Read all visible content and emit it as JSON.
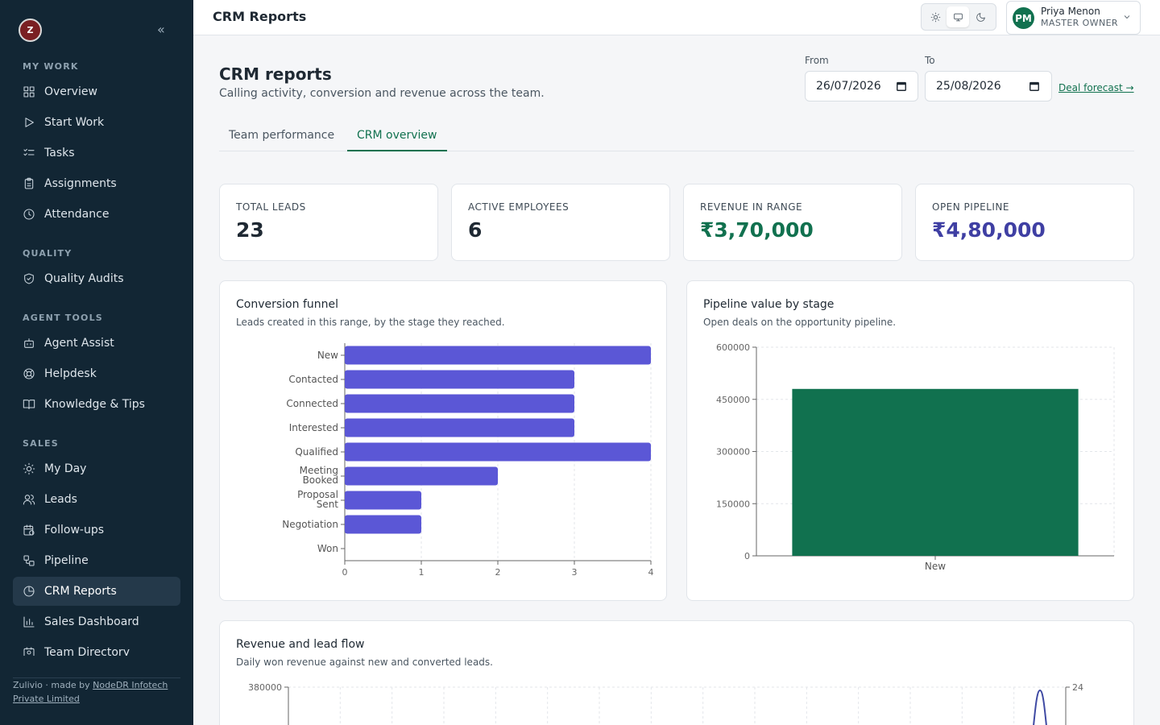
{
  "sidebar": {
    "logo_text": "Z",
    "sections": [
      {
        "title": "MY WORK",
        "items": [
          {
            "label": "Overview",
            "icon": "grid-icon"
          },
          {
            "label": "Start Work",
            "icon": "play-icon"
          },
          {
            "label": "Tasks",
            "icon": "checklist-icon"
          },
          {
            "label": "Assignments",
            "icon": "clipboard-icon"
          },
          {
            "label": "Attendance",
            "icon": "clock-icon"
          }
        ]
      },
      {
        "title": "QUALITY",
        "items": [
          {
            "label": "Quality Audits",
            "icon": "shield-icon"
          }
        ]
      },
      {
        "title": "AGENT TOOLS",
        "items": [
          {
            "label": "Agent Assist",
            "icon": "bot-icon"
          },
          {
            "label": "Helpdesk",
            "icon": "lifebuoy-icon"
          },
          {
            "label": "Knowledge & Tips",
            "icon": "book-icon"
          }
        ]
      },
      {
        "title": "SALES",
        "items": [
          {
            "label": "My Day",
            "icon": "sun-icon"
          },
          {
            "label": "Leads",
            "icon": "users-icon"
          },
          {
            "label": "Follow-ups",
            "icon": "calendar-clock-icon"
          },
          {
            "label": "Pipeline",
            "icon": "workflow-icon"
          },
          {
            "label": "CRM Reports",
            "icon": "pie-chart-icon",
            "active": true
          },
          {
            "label": "Sales Dashboard",
            "icon": "bar-chart-icon"
          },
          {
            "label": "Team Directory",
            "icon": "contact-icon"
          }
        ]
      }
    ],
    "footer": {
      "prefix": "Zulivio · made by ",
      "link": "NodeDR Infotech Private Limited"
    }
  },
  "topbar": {
    "title": "CRM Reports",
    "user": {
      "initials": "PM",
      "name": "Priya Menon",
      "role": "MASTER OWNER"
    }
  },
  "page": {
    "title": "CRM reports",
    "subtitle": "Calling activity, conversion and revenue across the team.",
    "from_label": "From",
    "from_value": "26/07/2026",
    "to_label": "To",
    "to_value": "25/08/2026",
    "forecast_link": "Deal forecast →",
    "tabs": [
      "Team performance",
      "CRM overview"
    ],
    "active_tab": 1
  },
  "kpis": [
    {
      "label": "TOTAL LEADS",
      "value": "23",
      "color": "#1f2933"
    },
    {
      "label": "ACTIVE EMPLOYEES",
      "value": "6",
      "color": "#1f2933"
    },
    {
      "label": "REVENUE IN RANGE",
      "value": "₹3,70,000",
      "color": "#11714f"
    },
    {
      "label": "OPEN PIPELINE",
      "value": "₹4,80,000",
      "color": "#3f3fa3"
    }
  ],
  "cards": {
    "funnel": {
      "title": "Conversion funnel",
      "subtitle": "Leads created in this range, by the stage they reached."
    },
    "pipeline": {
      "title": "Pipeline value by stage",
      "subtitle": "Open deals on the opportunity pipeline."
    },
    "flow": {
      "title": "Revenue and lead flow",
      "subtitle": "Daily won revenue against new and converted leads."
    }
  },
  "chart_data": [
    {
      "type": "bar",
      "orientation": "horizontal",
      "categories": [
        "New",
        "Contacted",
        "Connected",
        "Interested",
        "Qualified",
        "Meeting Booked",
        "Proposal Sent",
        "Negotiation",
        "Won"
      ],
      "values": [
        4,
        3,
        3,
        3,
        4,
        2,
        1,
        1,
        0
      ],
      "xlim": [
        0,
        4
      ],
      "xticks": [
        0,
        1,
        2,
        3,
        4
      ],
      "grid": true,
      "color": "#5b57d6"
    },
    {
      "type": "bar",
      "categories": [
        "New"
      ],
      "values": [
        480000
      ],
      "ylim": [
        0,
        600000
      ],
      "yticks": [
        0,
        150000,
        300000,
        450000,
        600000
      ],
      "grid": true,
      "color": "#11714f"
    },
    {
      "type": "line",
      "y_left_top_tick": "380000",
      "y_right_top_tick": "24",
      "color": "#3f4aa3"
    }
  ]
}
